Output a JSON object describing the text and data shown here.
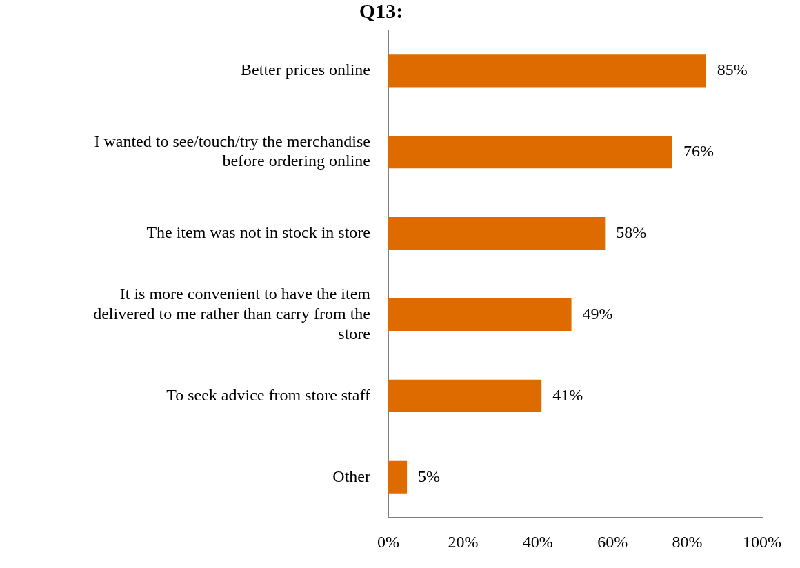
{
  "chart_data": {
    "type": "bar",
    "orientation": "horizontal",
    "title": "Q13:",
    "categories": [
      "Better prices online",
      "I wanted to see/touch/try the merchandise before ordering online",
      "The item was not in stock in store",
      "It is more convenient to have the item delivered to me rather than carry from the store",
      "To seek advice from store staff",
      "Other"
    ],
    "values": [
      85,
      76,
      58,
      49,
      41,
      5
    ],
    "value_labels": [
      "85%",
      "76%",
      "58%",
      "49%",
      "41%",
      "5%"
    ],
    "color": "#dd6b00",
    "xlim": [
      0,
      100
    ],
    "xticks": [
      {
        "value": 0,
        "label": "0%"
      },
      {
        "value": 20,
        "label": "20%"
      },
      {
        "value": 40,
        "label": "40%"
      },
      {
        "value": 60,
        "label": "60%"
      },
      {
        "value": 80,
        "label": "80%"
      },
      {
        "value": 100,
        "label": "100%"
      }
    ],
    "grid": false,
    "legend": false
  }
}
